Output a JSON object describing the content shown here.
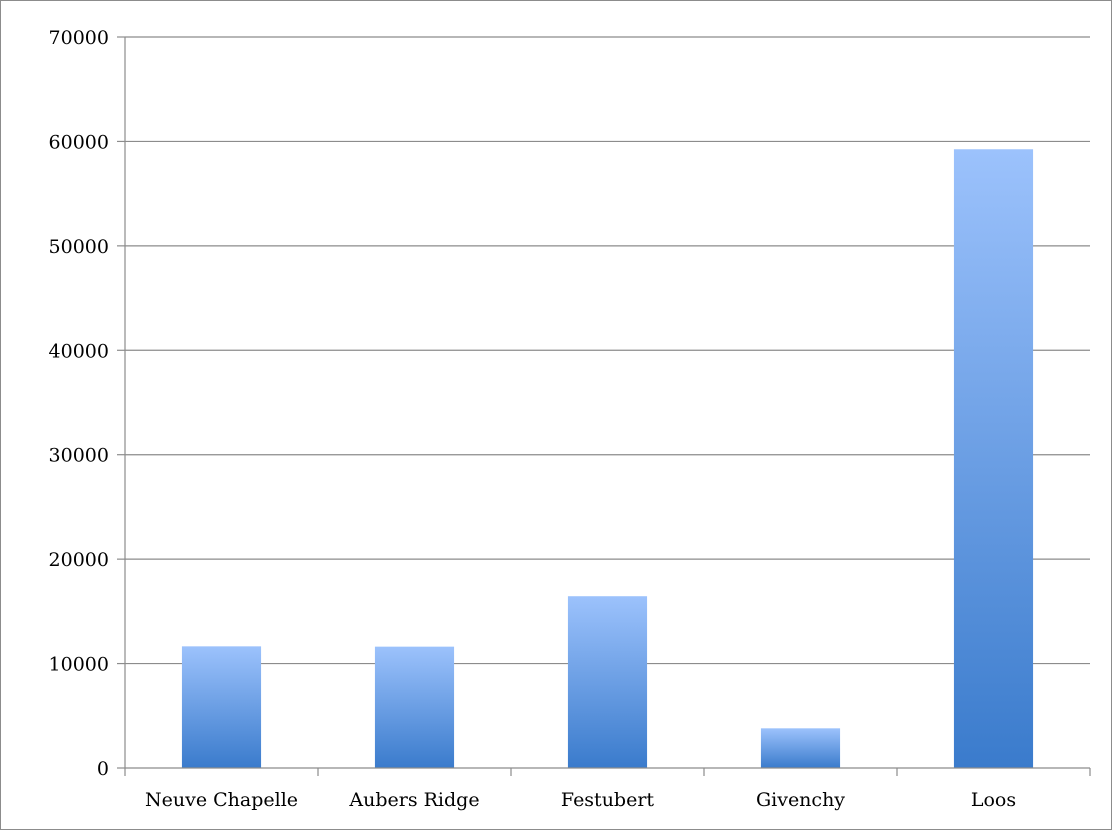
{
  "chart_data": {
    "type": "bar",
    "title": "",
    "xlabel": "",
    "ylabel": "",
    "categories": [
      "Neuve Chapelle",
      "Aubers Ridge",
      "Festubert",
      "Givenchy",
      "Loos"
    ],
    "values": [
      11650,
      11620,
      16450,
      3800,
      59250
    ],
    "ylim": [
      0,
      70000
    ],
    "yticks": [
      0,
      10000,
      20000,
      30000,
      40000,
      50000,
      60000,
      70000
    ],
    "grid": true,
    "legend": "none",
    "colors": {
      "bar_top": "#9cc2fc",
      "bar_bottom": "#3a7bcc",
      "grid": "#8c8c8c",
      "axis": "#8c8c8c",
      "text": "#000000"
    }
  }
}
